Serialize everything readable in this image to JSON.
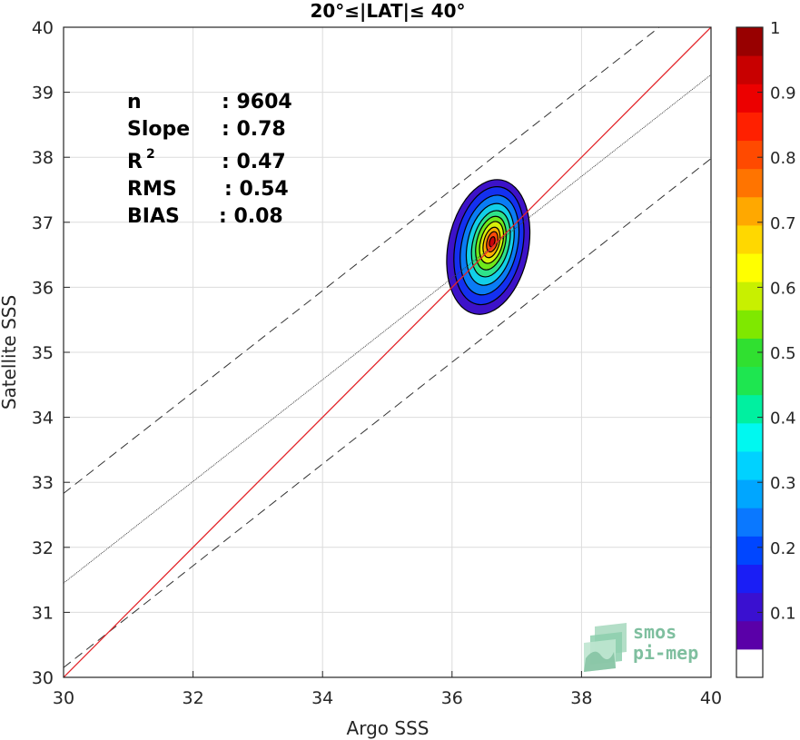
{
  "chart_data": {
    "type": "contour",
    "title": "20°≤|LAT|≤ 40°",
    "xlabel": "Argo SSS",
    "ylabel": "Satellite SSS",
    "xlim": [
      30,
      40
    ],
    "ylim": [
      30,
      40
    ],
    "xticks": [
      "30",
      "32",
      "34",
      "36",
      "38",
      "40"
    ],
    "yticks": [
      "30",
      "31",
      "32",
      "33",
      "34",
      "35",
      "36",
      "37",
      "38",
      "39",
      "40"
    ],
    "grid": true,
    "stats": {
      "n_label": "n",
      "n_value": ": 9604",
      "slope_label": "Slope",
      "slope_value": ": 0.78",
      "r2_label": "R",
      "r2_sup": "2",
      "r2_value": ": 0.47",
      "rms_label": "RMS",
      "rms_value": ": 0.54",
      "bias_label": "BIAS",
      "bias_value": ": 0.08"
    },
    "identity_line": {
      "color": "#e3262b",
      "points": [
        [
          30,
          30
        ],
        [
          40,
          40
        ]
      ]
    },
    "regression_line": {
      "color": "#444444",
      "points": [
        [
          30,
          31.45
        ],
        [
          40,
          39.27
        ]
      ]
    },
    "envelope_lines": {
      "color": "#333333",
      "style": "dashed",
      "upper": [
        [
          30,
          32.83
        ],
        [
          39.2,
          40
        ]
      ],
      "lower": [
        [
          30,
          30.15
        ],
        [
          40,
          37.98
        ]
      ]
    },
    "density_peak": {
      "x": 36.62,
      "y": 36.7
    },
    "contour_levels": [
      {
        "level": 0.05,
        "color": "#3d12c9",
        "cx": 36.56,
        "cy": 36.62,
        "rx": 0.62,
        "ry": 1.05,
        "tilt": 0.2
      },
      {
        "level": 0.1,
        "color": "#1430f0",
        "cx": 36.57,
        "cy": 36.64,
        "rx": 0.52,
        "ry": 0.92,
        "tilt": 0.2
      },
      {
        "level": 0.2,
        "color": "#0a7cf5",
        "cx": 36.58,
        "cy": 36.65,
        "rx": 0.43,
        "ry": 0.78,
        "tilt": 0.22
      },
      {
        "level": 0.3,
        "color": "#12cfe8",
        "cx": 36.59,
        "cy": 36.66,
        "rx": 0.35,
        "ry": 0.64,
        "tilt": 0.22
      },
      {
        "level": 0.4,
        "color": "#2ee38a",
        "cx": 36.6,
        "cy": 36.67,
        "rx": 0.28,
        "ry": 0.52,
        "tilt": 0.24
      },
      {
        "level": 0.5,
        "color": "#6fe81b",
        "cx": 36.6,
        "cy": 36.68,
        "rx": 0.22,
        "ry": 0.42,
        "tilt": 0.24
      },
      {
        "level": 0.6,
        "color": "#d8f00a",
        "cx": 36.61,
        "cy": 36.69,
        "rx": 0.17,
        "ry": 0.33,
        "tilt": 0.26
      },
      {
        "level": 0.7,
        "color": "#ffb000",
        "cx": 36.61,
        "cy": 36.69,
        "rx": 0.12,
        "ry": 0.24,
        "tilt": 0.26
      },
      {
        "level": 0.8,
        "color": "#ff4a0a",
        "cx": 36.62,
        "cy": 36.7,
        "rx": 0.08,
        "ry": 0.16,
        "tilt": 0.26
      },
      {
        "level": 0.9,
        "color": "#c8020a",
        "cx": 36.62,
        "cy": 36.7,
        "rx": 0.04,
        "ry": 0.08,
        "tilt": 0.26
      }
    ],
    "colorbar": {
      "ticks": [
        "0.1",
        "0.2",
        "0.3",
        "0.4",
        "0.5",
        "0.6",
        "0.7",
        "0.8",
        "0.9",
        "1"
      ],
      "tick_values": [
        0.1,
        0.2,
        0.3,
        0.4,
        0.5,
        0.6,
        0.7,
        0.8,
        0.9,
        1.0
      ],
      "colors": [
        "#ffffff",
        "#5a00a8",
        "#3a10d0",
        "#1a1ef5",
        "#0046ff",
        "#0a78ff",
        "#00a6ff",
        "#00d2ff",
        "#00f8f0",
        "#00f0a0",
        "#1ee650",
        "#30e030",
        "#7fe800",
        "#c8f000",
        "#ffff00",
        "#ffd800",
        "#ffa800",
        "#ff7400",
        "#ff4a00",
        "#ff2000",
        "#ec0000",
        "#c80000",
        "#980000"
      ]
    }
  },
  "logo": {
    "line1": "smos",
    "line2": "pi-mep"
  }
}
